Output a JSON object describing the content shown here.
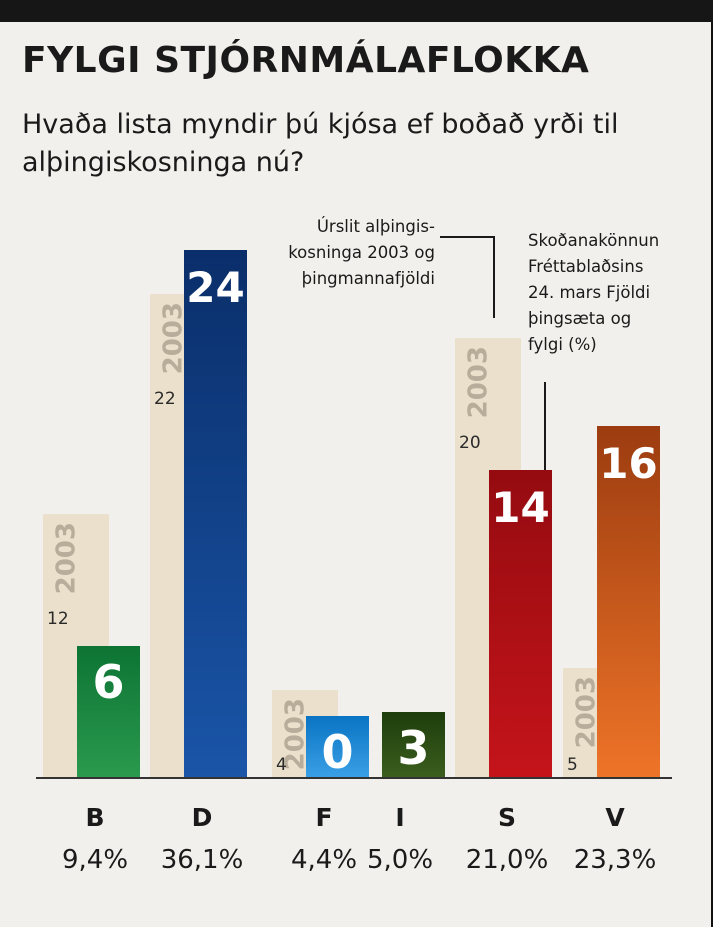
{
  "title": "FYLGI STJÓRNMÁLAFLOKKA",
  "subtitle": "Hvaða lista myndir þú kjósa ef boðað yrði til alþingiskosninga nú?",
  "annotations": {
    "election_2003": [
      "Úrslit alþingis-",
      "kosninga 2003 og",
      "þingmannafjöldi"
    ],
    "poll": [
      "Skoðanakönnun",
      "Fréttablaðsins",
      "24. mars Fjöldi",
      "þingsæta og",
      "fylgi (%)"
    ]
  },
  "chart_data": {
    "type": "bar",
    "title": "FYLGI STJÓRNMÁLAFLOKKA",
    "categories": [
      "B",
      "D",
      "F",
      "I",
      "S",
      "V"
    ],
    "series": [
      {
        "values": [
          12,
          22,
          4,
          0,
          20,
          5
        ],
        "label_2003": "2003"
      },
      {
        "values": [
          6,
          24,
          0,
          3,
          14,
          16
        ]
      }
    ],
    "percent_labels": [
      "9,4%",
      "36,1%",
      "4,4%",
      "5,0%",
      "21,0%",
      "23,3%"
    ],
    "ylim": [
      0,
      25
    ],
    "grid": false,
    "colors": {
      "B": [
        "#0d7434",
        "#2a9a4e"
      ],
      "D": [
        "#0a2e6a",
        "#1a55a8"
      ],
      "F": [
        "#0a74c4",
        "#3aa0e6"
      ],
      "I": [
        "#1d3d0c",
        "#3c5e1e"
      ],
      "S": [
        "#950b10",
        "#c4141a"
      ],
      "V": [
        "#9c3c10",
        "#ee7428"
      ],
      "bar_2003": "#ebe0cc",
      "label_2003": "#b8ad9a"
    }
  }
}
